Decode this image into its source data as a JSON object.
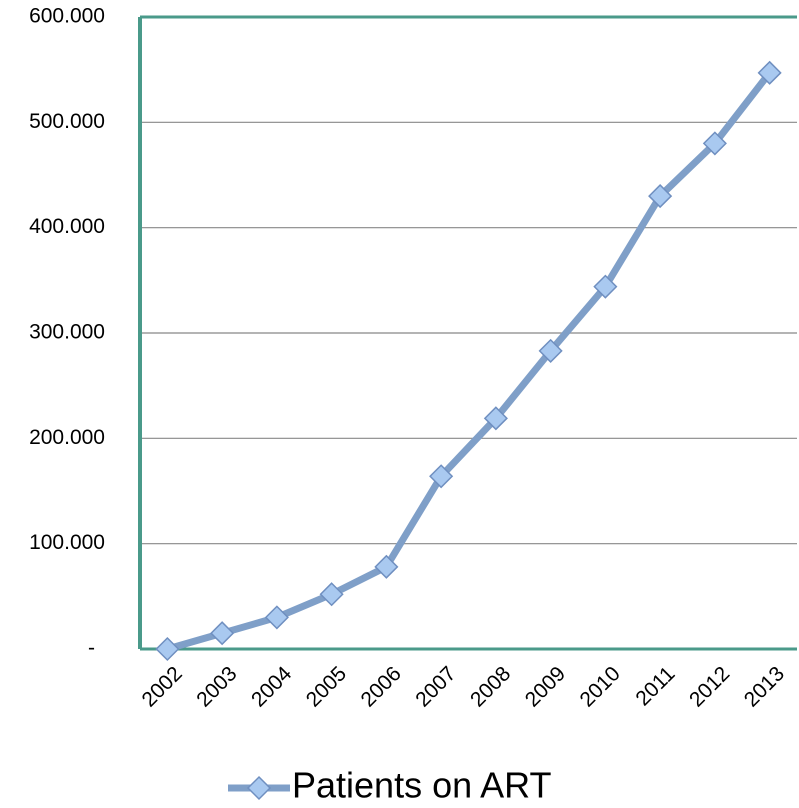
{
  "chart_data": {
    "type": "line",
    "categories": [
      "2002",
      "2003",
      "2004",
      "2005",
      "2006",
      "2007",
      "2008",
      "2009",
      "2010",
      "2011",
      "2012",
      "2013"
    ],
    "series": [
      {
        "name": "Patients on ART",
        "color": "#7f9fc8",
        "values": [
          0,
          15000,
          30000,
          52000,
          78000,
          164000,
          219000,
          283000,
          344000,
          430000,
          480000,
          547000
        ]
      }
    ],
    "ylim": [
      0,
      600000
    ],
    "yticks": [
      {
        "value": 0,
        "label": "-"
      },
      {
        "value": 100000,
        "label": "100.000"
      },
      {
        "value": 200000,
        "label": "200.000"
      },
      {
        "value": 300000,
        "label": "300.000"
      },
      {
        "value": 400000,
        "label": "400.000"
      },
      {
        "value": 500000,
        "label": "500.000"
      },
      {
        "value": 600000,
        "label": "600.000"
      }
    ],
    "grid": true,
    "legend": "bottom"
  }
}
